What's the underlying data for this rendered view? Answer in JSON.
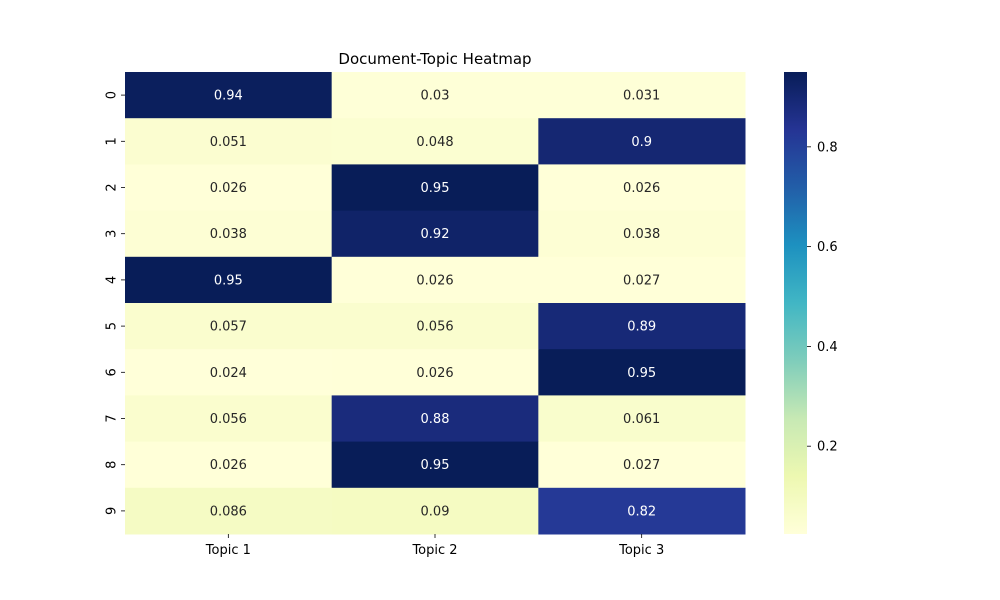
{
  "chart_data": {
    "type": "heatmap",
    "title": "Document-Topic Heatmap",
    "xlabel": "",
    "ylabel": "",
    "x_categories": [
      "Topic 1",
      "Topic 2",
      "Topic 3"
    ],
    "y_categories": [
      "0",
      "1",
      "2",
      "3",
      "4",
      "5",
      "6",
      "7",
      "8",
      "9"
    ],
    "values": [
      [
        0.94,
        0.03,
        0.031
      ],
      [
        0.051,
        0.048,
        0.9
      ],
      [
        0.026,
        0.95,
        0.026
      ],
      [
        0.038,
        0.92,
        0.038
      ],
      [
        0.95,
        0.026,
        0.027
      ],
      [
        0.057,
        0.056,
        0.89
      ],
      [
        0.024,
        0.026,
        0.95
      ],
      [
        0.056,
        0.88,
        0.061
      ],
      [
        0.026,
        0.95,
        0.027
      ],
      [
        0.086,
        0.09,
        0.82
      ]
    ],
    "cell_labels": [
      [
        "0.94",
        "0.03",
        "0.031"
      ],
      [
        "0.051",
        "0.048",
        "0.9"
      ],
      [
        "0.026",
        "0.95",
        "0.026"
      ],
      [
        "0.038",
        "0.92",
        "0.038"
      ],
      [
        "0.95",
        "0.026",
        "0.027"
      ],
      [
        "0.057",
        "0.056",
        "0.89"
      ],
      [
        "0.024",
        "0.026",
        "0.95"
      ],
      [
        "0.056",
        "0.88",
        "0.061"
      ],
      [
        "0.026",
        "0.95",
        "0.027"
      ],
      [
        "0.086",
        "0.09",
        "0.82"
      ]
    ],
    "colormap": "YlGnBu",
    "color_stops": [
      "#ffffd9",
      "#edf8b1",
      "#c7e9b4",
      "#7fcdbb",
      "#41b6c4",
      "#1d91c0",
      "#225ea8",
      "#253494",
      "#081d58"
    ],
    "colorbar": {
      "vmin": 0.024,
      "vmax": 0.95,
      "ticks": [
        0.2,
        0.4,
        0.6,
        0.8
      ],
      "tick_labels": [
        "0.2",
        "0.4",
        "0.6",
        "0.8"
      ]
    },
    "y_tick_rotation": "vertical"
  }
}
